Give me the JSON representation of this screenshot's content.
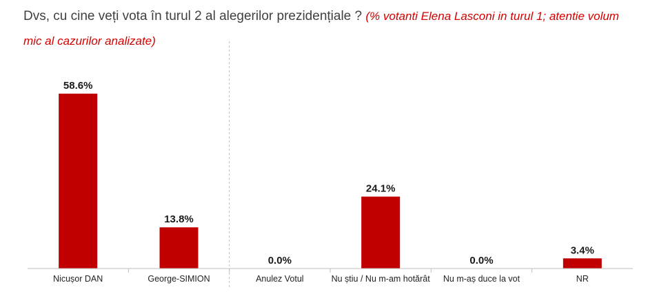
{
  "title": {
    "question": "Dvs, cu cine veți vota în turul 2 al alegerilor prezidențiale ?",
    "note": "(% votanti Elena Lasconi in turul 1; atentie volum mic al cazurilor analizate)"
  },
  "colors": {
    "bar": "#c00000",
    "axis": "#bfbfbf",
    "separator": "#bfbfbf"
  },
  "chart_data": {
    "type": "bar",
    "title": "Dvs, cu cine veți vota în turul 2 al alegerilor prezidențiale ?",
    "categories": [
      "Nicușor DAN",
      "George-SIMION",
      "Anulez Votul",
      "Nu știu / Nu m-am hotărât",
      "Nu m-aș duce la vot",
      "NR"
    ],
    "values": [
      58.6,
      13.8,
      0.0,
      24.1,
      0.0,
      3.4
    ],
    "value_labels": [
      "58.6%",
      "13.8%",
      "0.0%",
      "24.1%",
      "0.0%",
      "3.4%"
    ],
    "unit": "%",
    "ylim": [
      0,
      60
    ],
    "grid": false,
    "legend": "none",
    "separator_after_category": 1
  }
}
